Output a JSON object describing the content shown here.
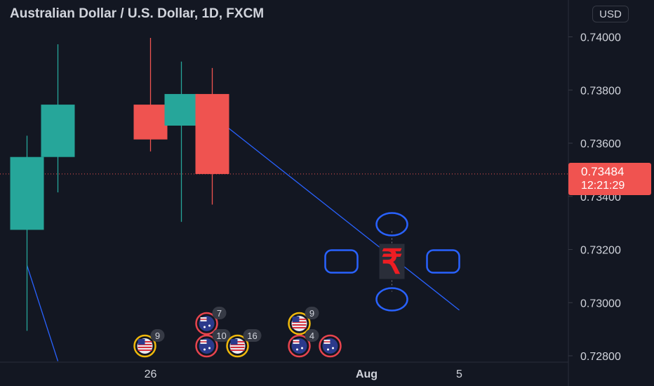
{
  "header": {
    "title": "Australian Dollar / U.S. Dollar, 1D, FXCM",
    "currency": "USD"
  },
  "last_price": {
    "value": "0.73484",
    "countdown": "12:21:29"
  },
  "colors": {
    "background": "#131722",
    "up": "#26a69a",
    "down": "#ef5350",
    "trendline": "#2962ff",
    "axis_text": "#d1d4dc"
  },
  "chart_data": {
    "type": "candlestick",
    "title": "Australian Dollar / U.S. Dollar, 1D, FXCM",
    "ylim": [
      0.7276,
      0.7409
    ],
    "y_ticks": [
      "0.74000",
      "0.73800",
      "0.73600",
      "0.73400",
      "0.73200",
      "0.73000",
      "0.72800"
    ],
    "y_tick_values": [
      0.74,
      0.738,
      0.736,
      0.734,
      0.732,
      0.73,
      0.728
    ],
    "x_ticks": [
      {
        "label": "26",
        "date": "2021-07-26"
      },
      {
        "label": "Aug",
        "date": "2021-08-02"
      },
      {
        "label": "5",
        "date": "2021-08-05"
      }
    ],
    "candles": [
      {
        "date": "2021-07-22",
        "open": 0.73274,
        "high": 0.73628,
        "low": 0.72894,
        "close": 0.73548
      },
      {
        "date": "2021-07-23",
        "open": 0.73548,
        "high": 0.73972,
        "low": 0.73415,
        "close": 0.73745
      },
      {
        "date": "2021-07-26",
        "open": 0.73745,
        "high": 0.73996,
        "low": 0.73569,
        "close": 0.73614
      },
      {
        "date": "2021-07-27",
        "open": 0.73666,
        "high": 0.73907,
        "low": 0.73304,
        "close": 0.73785
      },
      {
        "date": "2021-07-28",
        "open": 0.73785,
        "high": 0.73883,
        "low": 0.73369,
        "close": 0.73484
      }
    ],
    "current_price": 0.73484,
    "trendlines": [
      {
        "from": {
          "date": "2021-07-28",
          "value": 0.73705
        },
        "to": {
          "date": "2021-08-05",
          "value": 0.72972
        }
      },
      {
        "from": {
          "date": "2021-07-22",
          "value": 0.7314
        },
        "to": {
          "date": "2021-07-23",
          "value": 0.7278
        }
      }
    ],
    "events": [
      {
        "date": "2021-07-26",
        "country": "US",
        "count": "9",
        "row": 0
      },
      {
        "date": "2021-07-28",
        "country": "AU",
        "count": "7",
        "row": 1
      },
      {
        "date": "2021-07-28",
        "country": "AU",
        "count": "10",
        "row": 0
      },
      {
        "date": "2021-07-29",
        "country": "US",
        "count": "16",
        "row": 0
      },
      {
        "date": "2021-07-31",
        "country": "US",
        "count": "9",
        "row": 1
      },
      {
        "date": "2021-07-31",
        "country": "AU",
        "count": "4",
        "row": 0
      },
      {
        "date": "2021-08-01",
        "country": "AU",
        "count": "",
        "row": 0
      }
    ],
    "drawing": {
      "date": "2021-08-03",
      "value": 0.73155,
      "glyph": "₹"
    }
  }
}
